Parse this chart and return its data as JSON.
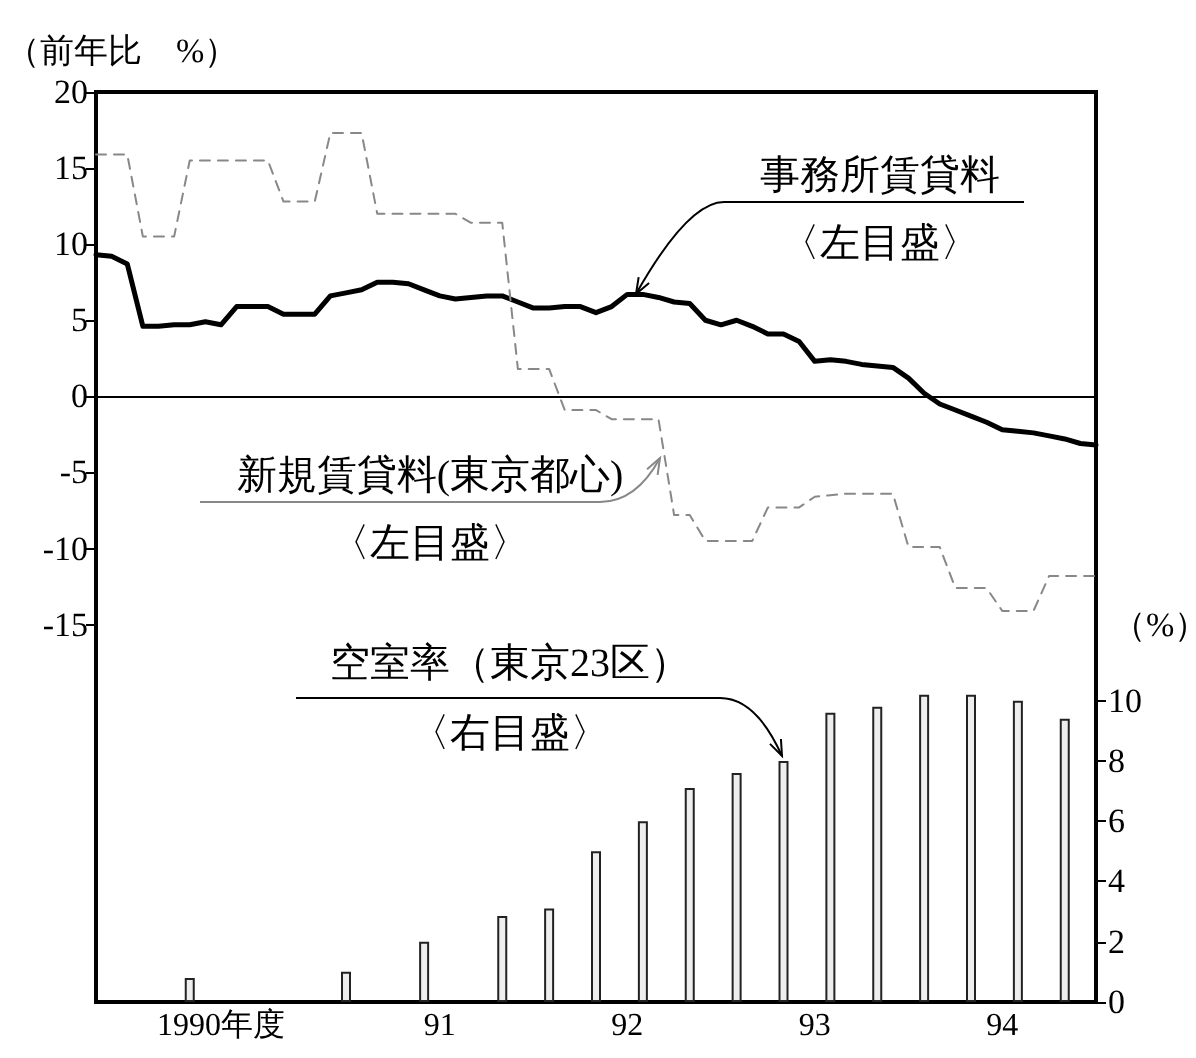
{
  "chart_data": {
    "type": "line",
    "ylabel": "（前年比　%）",
    "y2label": "（%）",
    "categories": [
      null,
      null,
      null,
      null,
      null,
      null,
      null,
      null,
      "1990年度",
      null,
      null,
      null,
      null,
      null,
      null,
      null,
      null,
      null,
      null,
      null,
      null,
      null,
      "91",
      null,
      null,
      null,
      null,
      null,
      null,
      null,
      null,
      null,
      null,
      null,
      "92",
      null,
      null,
      null,
      null,
      null,
      null,
      null,
      null,
      null,
      null,
      null,
      "93",
      null,
      null,
      null,
      null,
      null,
      null,
      null,
      null,
      null,
      null,
      null,
      "94",
      null,
      null,
      null,
      null,
      null,
      null
    ],
    "ylim": [
      -39.8,
      20
    ],
    "yticks": [
      -15,
      -10,
      -5,
      0,
      5,
      10,
      15,
      20
    ],
    "y2lim": [
      0,
      30.2
    ],
    "y2ticks": [
      0,
      2,
      4,
      6,
      8,
      10
    ],
    "ref_lines": [
      {
        "axis": "y",
        "value": 0,
        "color": "#000000"
      }
    ],
    "annotations": [
      "〈左目盛〉",
      "〈左目盛〉",
      "〈右目盛〉"
    ],
    "series": [
      {
        "name": "事務所賃貸料",
        "color": "#000000",
        "line_style": "solid",
        "values": [
          9.3,
          9.2,
          8.7,
          4.6,
          4.6,
          4.7,
          4.7,
          4.9,
          4.7,
          5.9,
          5.9,
          5.9,
          5.4,
          5.4,
          5.4,
          6.6,
          6.8,
          7.0,
          7.5,
          7.5,
          7.4,
          7.0,
          6.6,
          6.4,
          6.5,
          6.6,
          6.6,
          6.2,
          5.8,
          5.8,
          5.9,
          5.9,
          5.5,
          5.9,
          6.7,
          6.7,
          6.5,
          6.2,
          6.1,
          5.0,
          4.7,
          5.0,
          4.6,
          4.1,
          4.1,
          3.6,
          2.3,
          2.4,
          2.3,
          2.1,
          2.0,
          1.9,
          1.2,
          0.2,
          -0.5,
          -0.9,
          -1.3,
          -1.7,
          -2.2,
          -2.3,
          -2.4,
          -2.6,
          -2.8,
          -3.1,
          -3.2
        ]
      },
      {
        "name": "新規賃貸料(東京都心)",
        "color": "#888888",
        "line_style": "dashed",
        "values": [
          15.9,
          15.9,
          15.9,
          10.5,
          10.5,
          10.5,
          15.5,
          15.5,
          15.5,
          15.5,
          15.5,
          15.5,
          12.8,
          12.8,
          12.8,
          17.3,
          17.3,
          17.3,
          12.0,
          12.0,
          12.0,
          12.0,
          12.0,
          12.0,
          11.4,
          11.4,
          11.4,
          1.8,
          1.8,
          1.8,
          -0.9,
          -0.9,
          -0.9,
          -1.5,
          -1.5,
          -1.5,
          -1.5,
          -7.8,
          -7.8,
          -9.5,
          -9.5,
          -9.5,
          -9.5,
          -7.3,
          -7.3,
          -7.3,
          -6.6,
          -6.5,
          -6.4,
          -6.4,
          -6.4,
          -6.4,
          -9.9,
          -9.9,
          -9.9,
          -12.6,
          -12.6,
          -12.6,
          -14.1,
          -14.1,
          -14.1,
          -11.8,
          -11.8,
          -11.8,
          -11.8
        ]
      },
      {
        "name": "空室率（東京23区）",
        "type": "bar",
        "axis": "y2",
        "color": "#eeeeee",
        "values": [
          null,
          null,
          null,
          null,
          null,
          null,
          0.8,
          null,
          null,
          null,
          null,
          null,
          null,
          null,
          null,
          null,
          1.0,
          null,
          null,
          null,
          null,
          2.0,
          null,
          null,
          null,
          null,
          2.85,
          null,
          null,
          3.1,
          null,
          null,
          5.0,
          null,
          null,
          6.0,
          null,
          null,
          7.1,
          null,
          null,
          7.6,
          null,
          null,
          8.0,
          null,
          null,
          9.6,
          null,
          null,
          9.8,
          null,
          null,
          10.2,
          null,
          null,
          10.2,
          null,
          null,
          10.0,
          null,
          null,
          9.4,
          null,
          null
        ]
      }
    ]
  }
}
